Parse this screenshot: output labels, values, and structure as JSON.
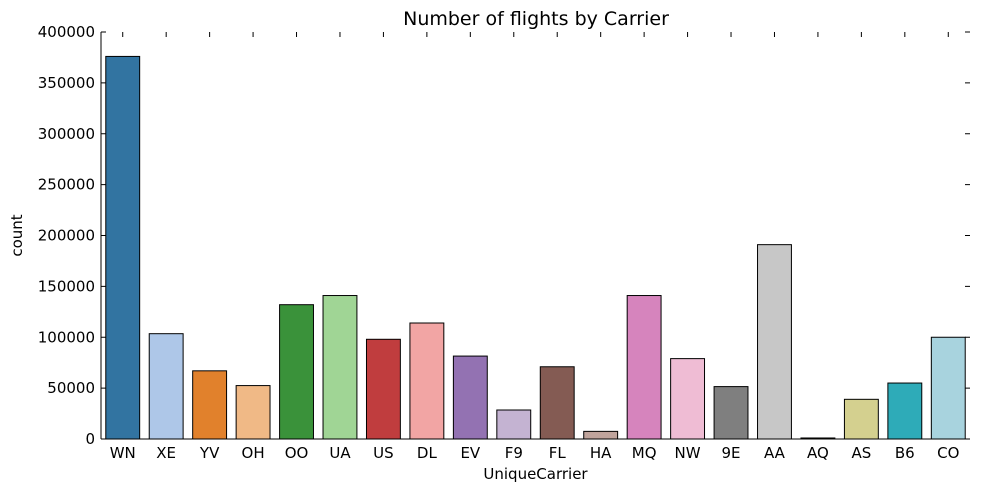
{
  "chart_data": {
    "type": "bar",
    "title": "Number of flights by Carrier",
    "xlabel": "UniqueCarrier",
    "ylabel": "count",
    "ylim": [
      0,
      400000
    ],
    "yticks": [
      "0",
      "50000",
      "100000",
      "150000",
      "200000",
      "250000",
      "300000",
      "350000",
      "400000"
    ],
    "grid": false,
    "categories": [
      "WN",
      "XE",
      "YV",
      "OH",
      "OO",
      "UA",
      "US",
      "DL",
      "EV",
      "F9",
      "FL",
      "HA",
      "MQ",
      "NW",
      "9E",
      "AA",
      "AQ",
      "AS",
      "B6",
      "CO"
    ],
    "values": [
      376000,
      103500,
      67000,
      52500,
      132000,
      141000,
      98000,
      114000,
      81500,
      28500,
      71000,
      7500,
      141000,
      79000,
      51500,
      191000,
      1000,
      39000,
      55000,
      100000
    ],
    "colors": [
      "#3274a1",
      "#aec7e8",
      "#e1812c",
      "#f0b986",
      "#3a923a",
      "#a0d595",
      "#c03d3e",
      "#f2a5a4",
      "#9372b2",
      "#c4b3d2",
      "#845b53",
      "#c0a49c",
      "#d684bd",
      "#efbcd4",
      "#7f7f7f",
      "#c7c7c7",
      "#a9aa35",
      "#d4d08f",
      "#2eabb8",
      "#a8d3de"
    ]
  }
}
